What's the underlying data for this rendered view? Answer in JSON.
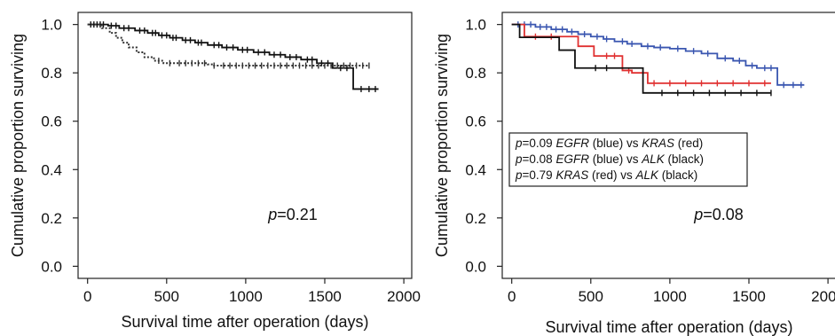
{
  "chart_data": [
    {
      "type": "line",
      "subtype": "kaplan-meier",
      "xlabel": "Survival time after operation (days)",
      "ylabel": "Cumulative proportion surviving",
      "xlim": [
        -60,
        2050
      ],
      "ylim": [
        -0.05,
        1.05
      ],
      "xticks": [
        "0",
        "500",
        "1000",
        "1500",
        "2000"
      ],
      "yticks": [
        "0.0",
        "0.2",
        "0.4",
        "0.6",
        "0.8",
        "1.0"
      ],
      "annotation": {
        "prefix": "p",
        "text": "=0.21"
      },
      "series": [
        {
          "color": "#111111",
          "style": "solid",
          "steps": [
            [
              0,
              1.0
            ],
            [
              130,
              0.995
            ],
            [
              200,
              0.985
            ],
            [
              300,
              0.975
            ],
            [
              380,
              0.965
            ],
            [
              450,
              0.955
            ],
            [
              520,
              0.945
            ],
            [
              600,
              0.935
            ],
            [
              680,
              0.925
            ],
            [
              760,
              0.915
            ],
            [
              850,
              0.905
            ],
            [
              950,
              0.895
            ],
            [
              1050,
              0.885
            ],
            [
              1150,
              0.875
            ],
            [
              1250,
              0.865
            ],
            [
              1350,
              0.855
            ],
            [
              1450,
              0.84
            ],
            [
              1550,
              0.82
            ],
            [
              1680,
              0.82
            ],
            [
              1680,
              0.733
            ],
            [
              1840,
              0.733
            ]
          ],
          "censor_x": [
            20,
            40,
            60,
            80,
            100,
            150,
            180,
            230,
            260,
            330,
            360,
            410,
            430,
            470,
            500,
            540,
            560,
            620,
            650,
            700,
            720,
            800,
            830,
            880,
            920,
            980,
            1010,
            1080,
            1120,
            1180,
            1220,
            1280,
            1320,
            1390,
            1420,
            1480,
            1520,
            1600,
            1640,
            1730,
            1780,
            1820
          ]
        },
        {
          "color": "#333333",
          "style": "dotted",
          "steps": [
            [
              0,
              1.0
            ],
            [
              90,
              0.985
            ],
            [
              140,
              0.965
            ],
            [
              180,
              0.945
            ],
            [
              220,
              0.925
            ],
            [
              260,
              0.905
            ],
            [
              310,
              0.885
            ],
            [
              360,
              0.865
            ],
            [
              420,
              0.85
            ],
            [
              480,
              0.84
            ],
            [
              560,
              0.84
            ],
            [
              760,
              0.835
            ],
            [
              800,
              0.83
            ],
            [
              1780,
              0.83
            ]
          ],
          "censor_x": [
            450,
            520,
            580,
            620,
            660,
            700,
            740,
            800,
            860,
            900,
            940,
            980,
            1020,
            1060,
            1100,
            1140,
            1180,
            1220,
            1260,
            1300,
            1340,
            1380,
            1420,
            1460,
            1500,
            1540,
            1580,
            1620,
            1660,
            1700,
            1740,
            1780
          ]
        }
      ]
    },
    {
      "type": "line",
      "subtype": "kaplan-meier",
      "xlabel": "Survival time after operation (days)",
      "ylabel": "Cumulative proportion surviving",
      "xlim": [
        -60,
        2050
      ],
      "ylim": [
        -0.05,
        1.05
      ],
      "xticks": [
        "0",
        "500",
        "1000",
        "1500",
        "2000"
      ],
      "yticks": [
        "0.0",
        "0.2",
        "0.4",
        "0.6",
        "0.8",
        "1.0"
      ],
      "annotation": {
        "prefix": "p",
        "text": "=0.08"
      },
      "legend_box": {
        "position": "center-left",
        "lines": [
          {
            "p": "p",
            "text1": "=0.09 ",
            "g1": "EGFR",
            "text2": " (blue) vs ",
            "g2": "KRAS",
            "text3": " (red)"
          },
          {
            "p": "p",
            "text1": "=0.08 ",
            "g1": "EGFR",
            "text2": " (blue) vs ",
            "g2": "ALK",
            "text3": " (black)"
          },
          {
            "p": "p",
            "text1": "=0.79 ",
            "g1": "KRAS",
            "text2": " (red) vs ",
            "g2": "ALK",
            "text3": " (black)"
          }
        ]
      },
      "series": [
        {
          "color": "#3a56b0",
          "steps": [
            [
              0,
              1.0
            ],
            [
              150,
              0.99
            ],
            [
              250,
              0.98
            ],
            [
              350,
              0.97
            ],
            [
              420,
              0.96
            ],
            [
              500,
              0.95
            ],
            [
              580,
              0.94
            ],
            [
              650,
              0.93
            ],
            [
              730,
              0.92
            ],
            [
              820,
              0.91
            ],
            [
              900,
              0.905
            ],
            [
              1000,
              0.9
            ],
            [
              1100,
              0.89
            ],
            [
              1200,
              0.88
            ],
            [
              1300,
              0.86
            ],
            [
              1400,
              0.85
            ],
            [
              1480,
              0.83
            ],
            [
              1550,
              0.82
            ],
            [
              1680,
              0.82
            ],
            [
              1680,
              0.75
            ],
            [
              1850,
              0.75
            ]
          ],
          "censor_x": [
            40,
            80,
            120,
            180,
            220,
            280,
            320,
            380,
            460,
            540,
            600,
            700,
            760,
            860,
            940,
            1050,
            1150,
            1240,
            1350,
            1440,
            1520,
            1600,
            1640,
            1720,
            1780,
            1830
          ]
        },
        {
          "color": "#e03030",
          "steps": [
            [
              0,
              1.0
            ],
            [
              80,
              1.0
            ],
            [
              80,
              0.95
            ],
            [
              420,
              0.95
            ],
            [
              420,
              0.91
            ],
            [
              520,
              0.91
            ],
            [
              520,
              0.87
            ],
            [
              700,
              0.87
            ],
            [
              700,
              0.81
            ],
            [
              760,
              0.81
            ],
            [
              760,
              0.8
            ],
            [
              860,
              0.8
            ],
            [
              860,
              0.757
            ],
            [
              1640,
              0.757
            ]
          ],
          "censor_x": [
            150,
            250,
            600,
            650,
            740,
            900,
            1000,
            1100,
            1200,
            1300,
            1400,
            1500,
            1600
          ]
        },
        {
          "color": "#111111",
          "steps": [
            [
              0,
              1.0
            ],
            [
              50,
              1.0
            ],
            [
              50,
              0.947
            ],
            [
              300,
              0.947
            ],
            [
              300,
              0.894
            ],
            [
              400,
              0.894
            ],
            [
              400,
              0.82
            ],
            [
              830,
              0.82
            ],
            [
              830,
              0.717
            ],
            [
              1640,
              0.717
            ]
          ],
          "censor_x": [
            530,
            600,
            950,
            1050,
            1150,
            1250,
            1350,
            1450,
            1550,
            1640
          ]
        }
      ]
    }
  ]
}
